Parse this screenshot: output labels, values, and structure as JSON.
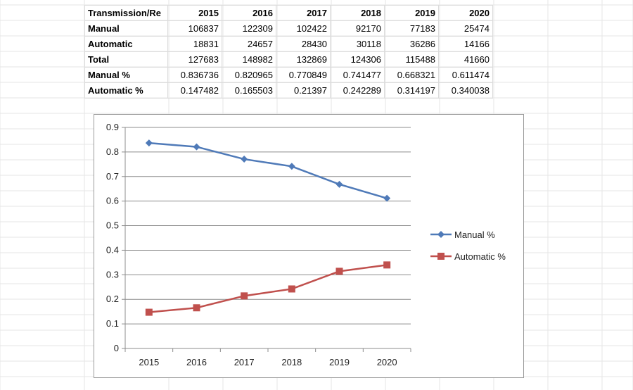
{
  "sheet": {
    "header_label": "Transmission/Re",
    "years": [
      "2015",
      "2016",
      "2017",
      "2018",
      "2019",
      "2020"
    ],
    "rows": [
      {
        "label": "Manual",
        "values": [
          "106837",
          "122309",
          "102422",
          "92170",
          "77183",
          "25474"
        ]
      },
      {
        "label": "Automatic",
        "values": [
          "18831",
          "24657",
          "28430",
          "30118",
          "36286",
          "14166"
        ]
      },
      {
        "label": "Total",
        "values": [
          "127683",
          "148982",
          "132869",
          "124306",
          "115488",
          "41660"
        ]
      },
      {
        "label": "Manual %",
        "values": [
          "0.836736",
          "0.820965",
          "0.770849",
          "0.741477",
          "0.668321",
          "0.611474"
        ]
      },
      {
        "label": "Automatic %",
        "values": [
          "0.147482",
          "0.165503",
          "0.21397",
          "0.242289",
          "0.314197",
          "0.340038"
        ]
      }
    ]
  },
  "chart_data": {
    "type": "line",
    "x": [
      "2015",
      "2016",
      "2017",
      "2018",
      "2019",
      "2020"
    ],
    "series": [
      {
        "name": "Manual %",
        "values": [
          0.836736,
          0.820965,
          0.770849,
          0.741477,
          0.668321,
          0.611474
        ],
        "color": "#4f7ab8",
        "marker": "diamond"
      },
      {
        "name": "Automatic %",
        "values": [
          0.147482,
          0.165503,
          0.21397,
          0.242289,
          0.314197,
          0.340038
        ],
        "color": "#c0504d",
        "marker": "square"
      }
    ],
    "yticks": [
      "0",
      "0.1",
      "0.2",
      "0.3",
      "0.4",
      "0.5",
      "0.6",
      "0.7",
      "0.8",
      "0.9"
    ],
    "ylim": [
      0,
      0.9
    ],
    "grid": true,
    "legend": "right"
  }
}
